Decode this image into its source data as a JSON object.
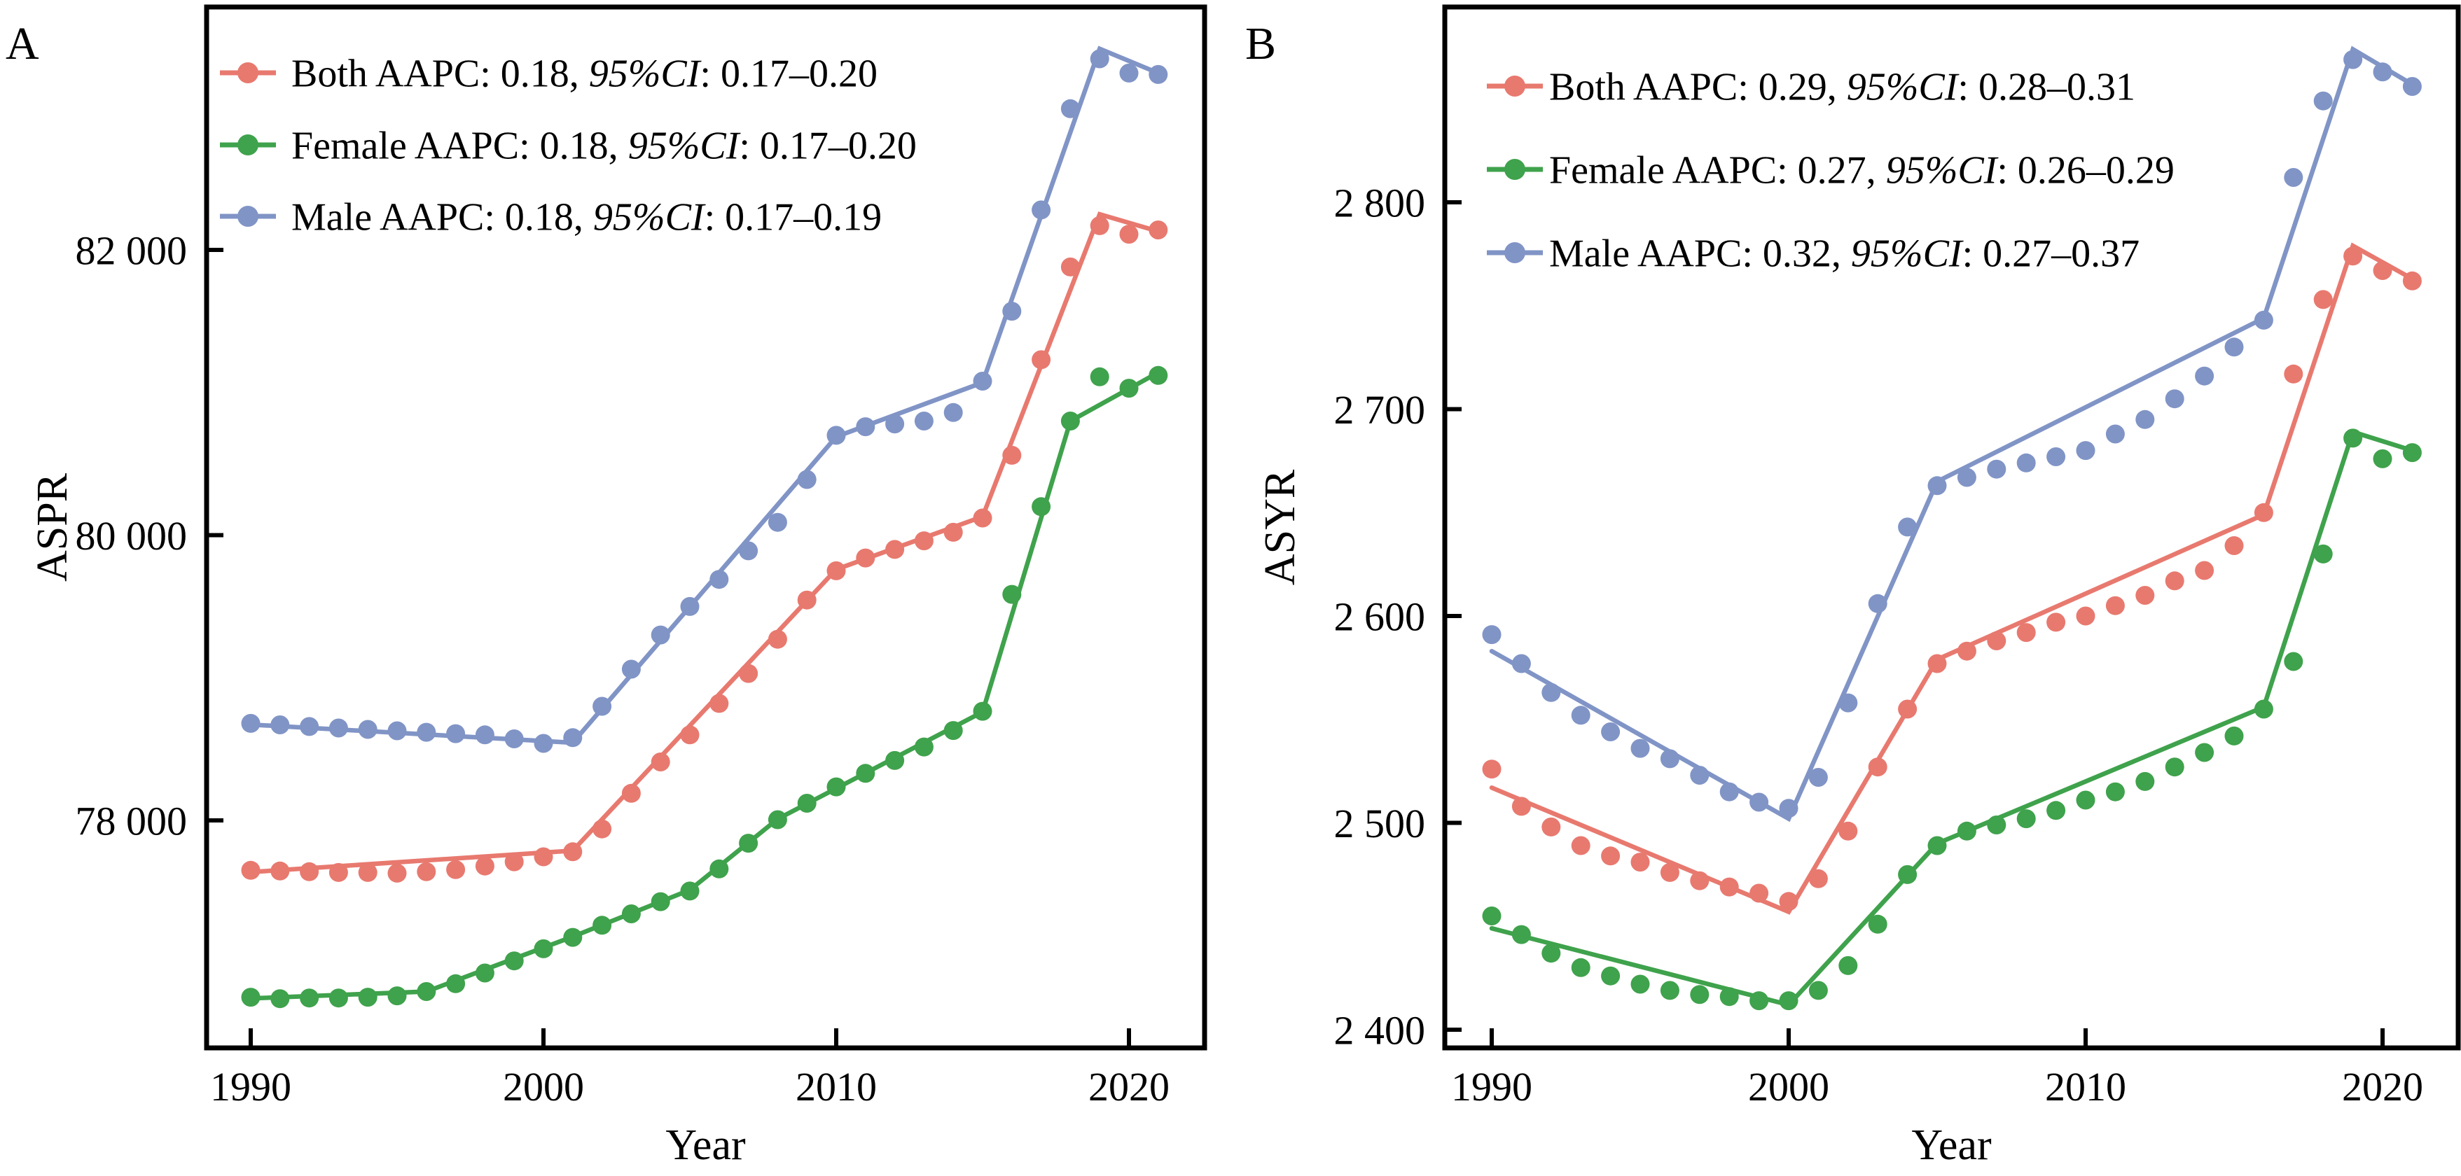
{
  "figure": {
    "background": "#ffffff",
    "text_color": "#000000",
    "axis_color": "#000000"
  },
  "chart_data": [
    {
      "type": "scatter",
      "panel_label": "A",
      "xlabel": "Year",
      "ylabel": "ASPR",
      "xlim": [
        1988.5,
        2022.6
      ],
      "ylim": [
        76400,
        83700
      ],
      "grid": false,
      "legend_position": "upper-left",
      "xticks": [
        {
          "value": 1990,
          "label": "1990"
        },
        {
          "value": 2000,
          "label": "2000"
        },
        {
          "value": 2010,
          "label": "2010"
        },
        {
          "value": 2020,
          "label": "2020"
        }
      ],
      "yticks": [
        {
          "value": 82000,
          "label": "82 000"
        },
        {
          "value": 80000,
          "label": "80 000"
        },
        {
          "value": 78000,
          "label": "78 000"
        }
      ],
      "years": [
        1990,
        1991,
        1992,
        1993,
        1994,
        1995,
        1996,
        1997,
        1998,
        1999,
        2000,
        2001,
        2002,
        2003,
        2004,
        2005,
        2006,
        2007,
        2008,
        2009,
        2010,
        2011,
        2012,
        2013,
        2014,
        2015,
        2016,
        2017,
        2018,
        2019,
        2020,
        2021
      ],
      "series": [
        {
          "name": "Both",
          "color": "#E8796F",
          "legend_pre": "Both AAPC: 0.18, ",
          "legend_italic": "95%CI",
          "legend_post": ": 0.17–0.20",
          "legend_full": "Both AAPC: 0.18, 95%CI: 0.17–0.20",
          "values": [
            77650,
            77645,
            77640,
            77635,
            77635,
            77630,
            77640,
            77655,
            77680,
            77710,
            77745,
            77780,
            77940,
            78190,
            78410,
            78600,
            78820,
            79030,
            79270,
            79545,
            79750,
            79840,
            79900,
            79960,
            80020,
            80120,
            80560,
            81230,
            81880,
            82170,
            82110,
            82140
          ],
          "fit": [
            [
              1990,
              77638
            ],
            [
              2001,
              77788
            ],
            [
              2010,
              79760
            ],
            [
              2015,
              80130
            ],
            [
              2019,
              82250
            ],
            [
              2021,
              82130
            ]
          ]
        },
        {
          "name": "Female",
          "color": "#3FA24C",
          "legend_pre": "Female AAPC: 0.18, ",
          "legend_italic": "95%CI",
          "legend_post": ": 0.17–0.20",
          "legend_full": "Female AAPC: 0.18, 95%CI: 0.17–0.20",
          "values": [
            76760,
            76750,
            76755,
            76755,
            76760,
            76770,
            76800,
            76855,
            76930,
            77015,
            77100,
            77180,
            77265,
            77345,
            77430,
            77505,
            77660,
            77840,
            78005,
            78120,
            78235,
            78330,
            78420,
            78515,
            78630,
            78765,
            79585,
            80200,
            80800,
            81110,
            81030,
            81120
          ],
          "fit": [
            [
              1990,
              76752
            ],
            [
              1996,
              76800
            ],
            [
              2001,
              77185
            ],
            [
              2005,
              77512
            ],
            [
              2008,
              78010
            ],
            [
              2015,
              78760
            ],
            [
              2018,
              80800
            ],
            [
              2021,
              81140
            ]
          ]
        },
        {
          "name": "Male",
          "color": "#8094C6",
          "legend_pre": "Male AAPC: 0.18, ",
          "legend_italic": "95%CI",
          "legend_post": ": 0.17–0.19",
          "legend_full": "Male AAPC: 0.18, 95%CI: 0.17–0.19",
          "values": [
            78680,
            78670,
            78658,
            78648,
            78638,
            78628,
            78618,
            78608,
            78600,
            78572,
            78540,
            78580,
            78800,
            79060,
            79300,
            79500,
            79690,
            79890,
            80090,
            80390,
            80700,
            80760,
            80780,
            80800,
            80860,
            81080,
            81570,
            82280,
            82990,
            83340,
            83240,
            83230
          ],
          "fit": [
            [
              1990,
              78672
            ],
            [
              2001,
              78545
            ],
            [
              2010,
              80690
            ],
            [
              2015,
              81070
            ],
            [
              2019,
              83410
            ],
            [
              2021,
              83240
            ]
          ]
        }
      ]
    },
    {
      "type": "scatter",
      "panel_label": "B",
      "xlabel": "Year",
      "ylabel": "ASYR",
      "xlim": [
        1988.5,
        2022.6
      ],
      "ylim": [
        2391,
        2894
      ],
      "grid": false,
      "legend_position": "upper-left",
      "xticks": [
        {
          "value": 1990,
          "label": "1990"
        },
        {
          "value": 2000,
          "label": "2000"
        },
        {
          "value": 2010,
          "label": "2010"
        },
        {
          "value": 2020,
          "label": "2020"
        }
      ],
      "yticks": [
        {
          "value": 2800,
          "label": "2 800"
        },
        {
          "value": 2700,
          "label": "2 700"
        },
        {
          "value": 2600,
          "label": "2 600"
        },
        {
          "value": 2500,
          "label": "2 500"
        },
        {
          "value": 2400,
          "label": "2 400"
        }
      ],
      "years": [
        1990,
        1991,
        1992,
        1993,
        1994,
        1995,
        1996,
        1997,
        1998,
        1999,
        2000,
        2001,
        2002,
        2003,
        2004,
        2005,
        2006,
        2007,
        2008,
        2009,
        2010,
        2011,
        2012,
        2013,
        2014,
        2015,
        2016,
        2017,
        2018,
        2019,
        2020,
        2021
      ],
      "series": [
        {
          "name": "Both",
          "color": "#E8796F",
          "legend_pre": "Both AAPC: 0.29, ",
          "legend_italic": "95%CI",
          "legend_post": ": 0.28–0.31",
          "legend_full": "Both AAPC: 0.29, 95%CI: 0.28–0.31",
          "values": [
            2526,
            2508,
            2498,
            2489,
            2484,
            2481,
            2476,
            2472,
            2469,
            2466,
            2462,
            2473,
            2496,
            2527,
            2555,
            2577,
            2583,
            2588,
            2592,
            2597,
            2600,
            2605,
            2610,
            2617,
            2622,
            2634,
            2650,
            2717,
            2753,
            2774,
            2767,
            2762
          ],
          "fit": [
            [
              1990,
              2517
            ],
            [
              2000,
              2457
            ],
            [
              2005,
              2579
            ],
            [
              2016,
              2649
            ],
            [
              2019,
              2779
            ],
            [
              2021,
              2763
            ]
          ]
        },
        {
          "name": "Female",
          "color": "#3FA24C",
          "legend_pre": "Female AAPC: 0.27, ",
          "legend_italic": "95%CI",
          "legend_post": ": 0.26–0.29",
          "legend_full": "Female AAPC: 0.27, 95%CI: 0.26–0.29",
          "values": [
            2455,
            2446,
            2437,
            2430,
            2426,
            2422,
            2419,
            2417,
            2416,
            2414,
            2414,
            2419,
            2431,
            2451,
            2475,
            2489,
            2496,
            2499,
            2502,
            2506,
            2511,
            2515,
            2520,
            2527,
            2534,
            2542,
            2555,
            2578,
            2630,
            2686,
            2676,
            2679
          ],
          "fit": [
            [
              1990,
              2449
            ],
            [
              2000,
              2412
            ],
            [
              2005,
              2490
            ],
            [
              2016,
              2556
            ],
            [
              2019,
              2689
            ],
            [
              2021,
              2680
            ]
          ]
        },
        {
          "name": "Male",
          "color": "#8094C6",
          "legend_pre": "Male AAPC: 0.32, ",
          "legend_italic": "95%CI",
          "legend_post": ": 0.27–0.37",
          "legend_full": "Male AAPC: 0.32, 95%CI: 0.27–0.37",
          "values": [
            2591,
            2577,
            2563,
            2552,
            2544,
            2536,
            2531,
            2523,
            2515,
            2510,
            2507,
            2522,
            2558,
            2606,
            2643,
            2663,
            2667,
            2671,
            2674,
            2677,
            2680,
            2688,
            2695,
            2705,
            2716,
            2730,
            2743,
            2812,
            2849,
            2869,
            2863,
            2856
          ],
          "fit": [
            [
              1990,
              2583
            ],
            [
              2000,
              2502
            ],
            [
              2005,
              2665
            ],
            [
              2016,
              2744
            ],
            [
              2019,
              2874
            ],
            [
              2021,
              2857
            ]
          ]
        }
      ]
    }
  ]
}
